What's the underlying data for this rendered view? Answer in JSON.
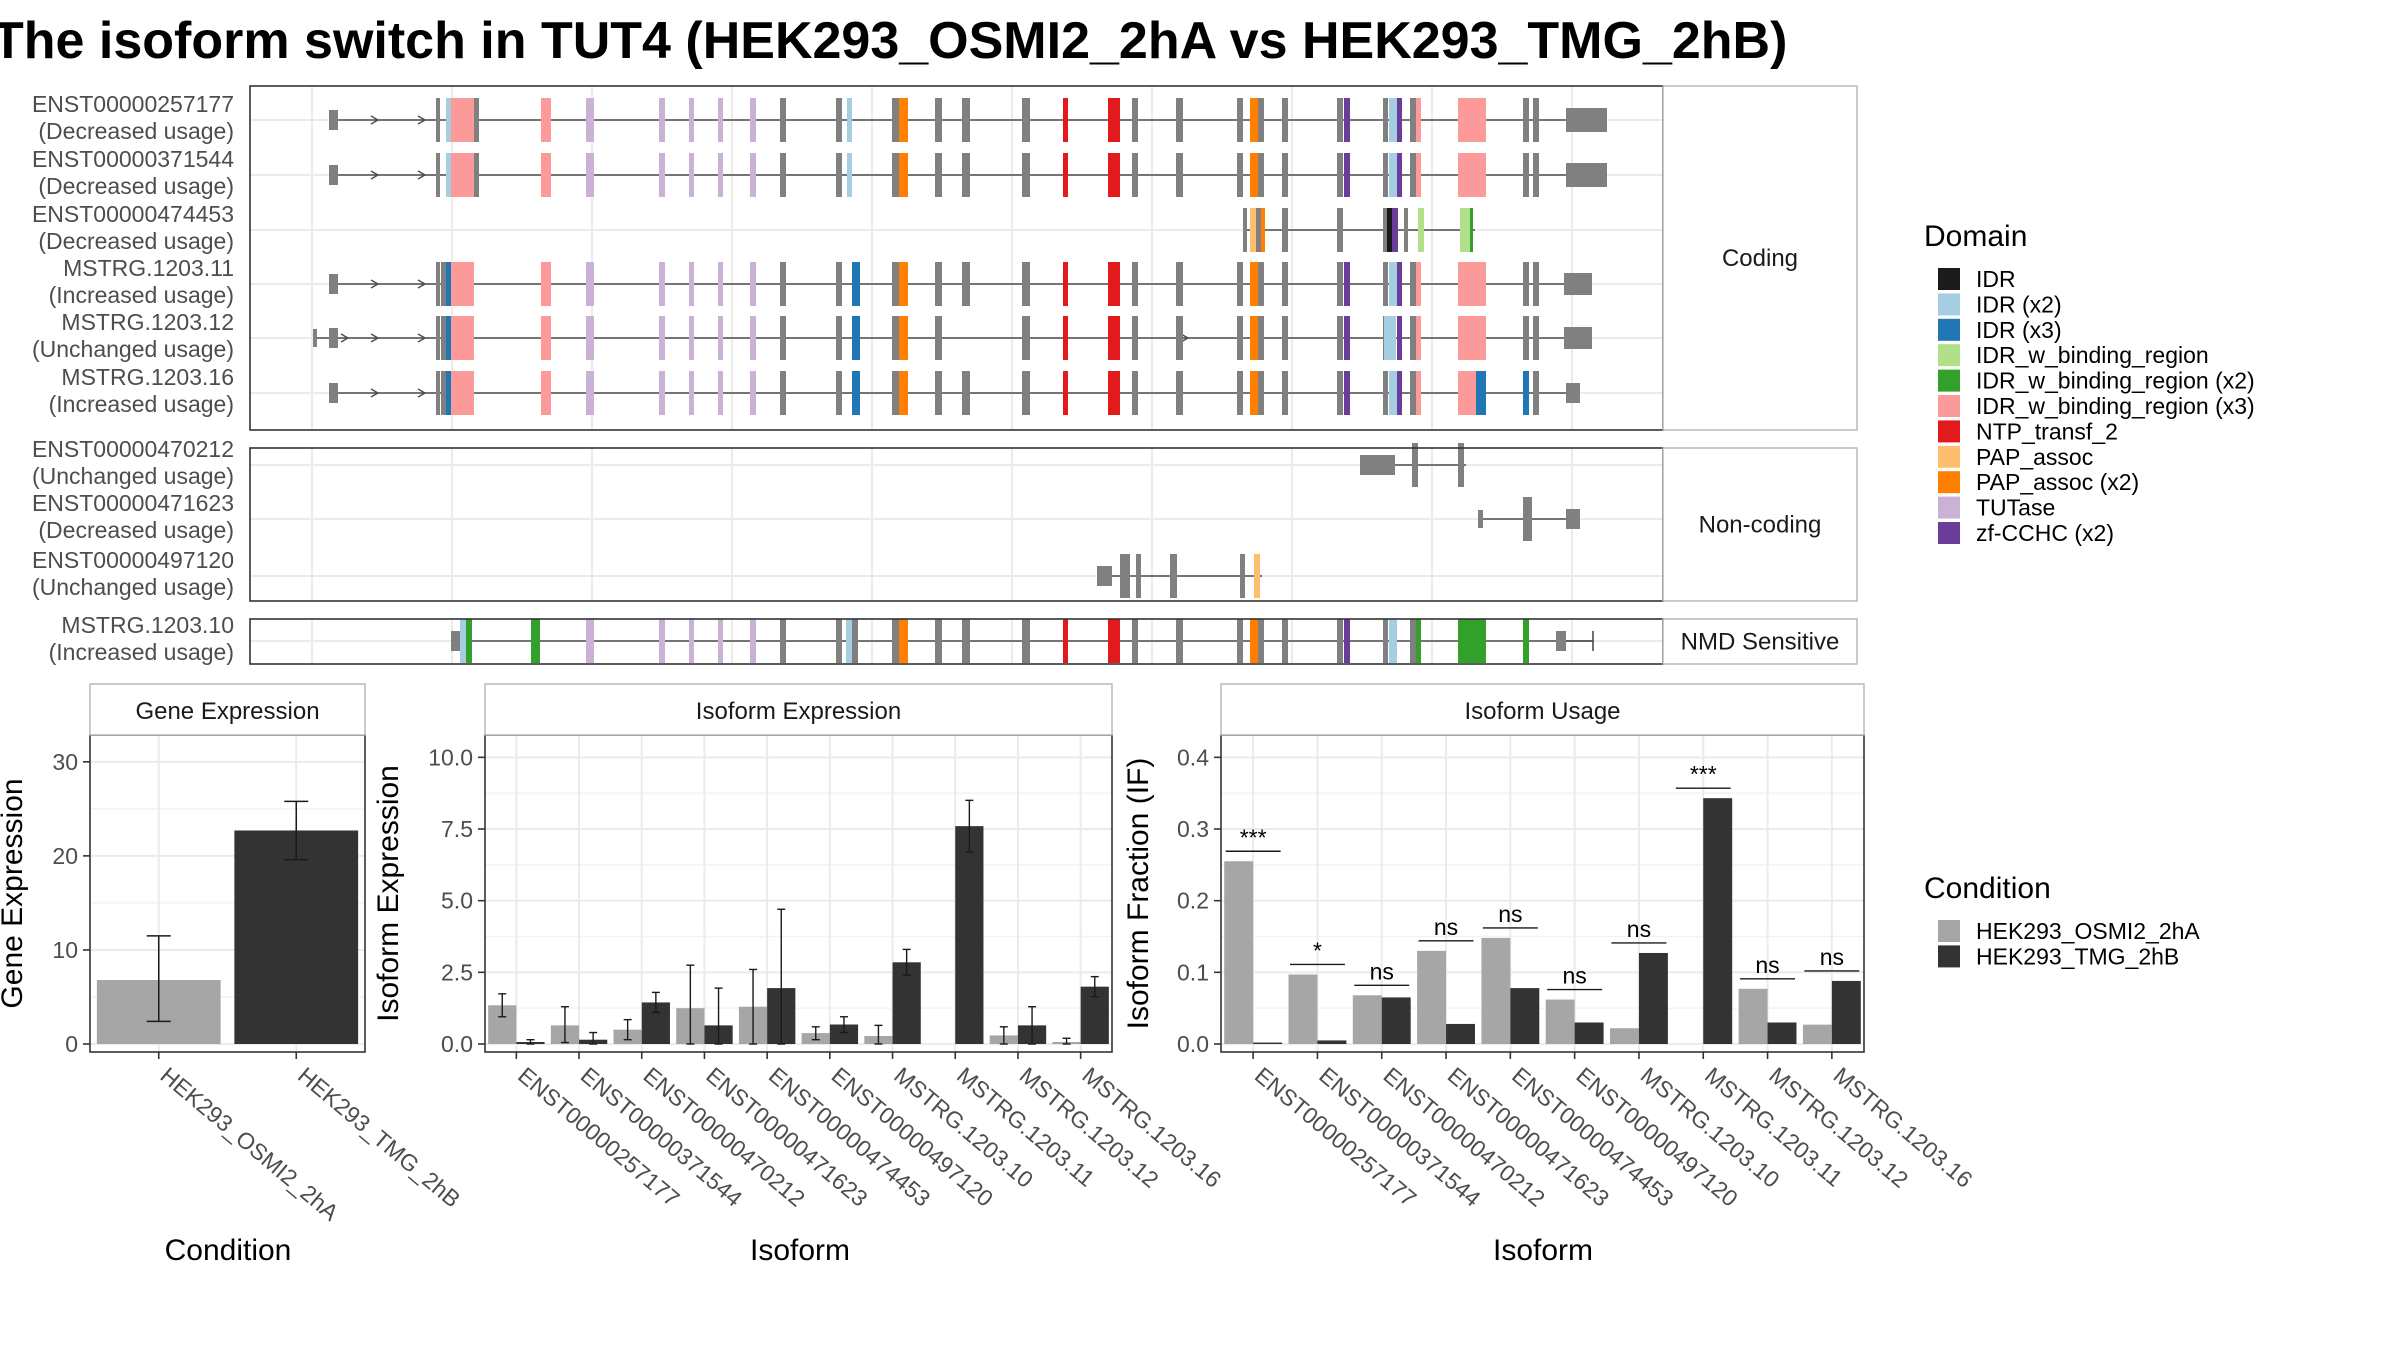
{
  "title": "The isoform switch in TUT4 (HEK293_OSMI2_2hA vs HEK293_TMG_2hB)",
  "colors": {
    "cond1": "#a6a6a6",
    "cond2": "#333333",
    "exon_grey": "#808080",
    "domains": {
      "IDR": "#1b1b1b",
      "IDR (x2)": "#a6cee3",
      "IDR (x3)": "#1f78b4",
      "IDR_w_binding_region": "#b2df8a",
      "IDR_w_binding_region (x2)": "#33a02c",
      "IDR_w_binding_region (x3)": "#fb9a99",
      "NTP_transf_2": "#e31a1c",
      "PAP_assoc": "#fdbf6f",
      "PAP_assoc (x2)": "#ff7f00",
      "TUTase": "#cab2d6",
      "zf-CCHC (x2)": "#6a3d9a"
    }
  },
  "transcript_panels": [
    {
      "strip": "Coding",
      "transcripts": [
        {
          "id": "ENST00000257177",
          "usage": "(Decreased usage)"
        },
        {
          "id": "ENST00000371544",
          "usage": "(Decreased usage)"
        },
        {
          "id": "ENST00000474453",
          "usage": "(Decreased usage)"
        },
        {
          "id": "MSTRG.1203.11",
          "usage": "(Increased usage)"
        },
        {
          "id": "MSTRG.1203.12",
          "usage": "(Unchanged usage)"
        },
        {
          "id": "MSTRG.1203.16",
          "usage": "(Increased usage)"
        }
      ]
    },
    {
      "strip": "Non-coding",
      "transcripts": [
        {
          "id": "ENST00000470212",
          "usage": "(Unchanged usage)"
        },
        {
          "id": "ENST00000471623",
          "usage": "(Decreased usage)"
        },
        {
          "id": "ENST00000497120",
          "usage": "(Unchanged usage)"
        }
      ]
    },
    {
      "strip": "NMD Sensitive",
      "transcripts": [
        {
          "id": "MSTRG.1203.10",
          "usage": "(Increased usage)"
        }
      ]
    }
  ],
  "domain_legend": {
    "title": "Domain",
    "items": [
      {
        "label": "IDR",
        "color": "#1b1b1b"
      },
      {
        "label": "IDR (x2)",
        "color": "#a6cee3"
      },
      {
        "label": "IDR (x3)",
        "color": "#1f78b4"
      },
      {
        "label": "IDR_w_binding_region",
        "color": "#b2df8a"
      },
      {
        "label": "IDR_w_binding_region (x2)",
        "color": "#33a02c"
      },
      {
        "label": "IDR_w_binding_region (x3)",
        "color": "#fb9a99"
      },
      {
        "label": "NTP_transf_2",
        "color": "#e31a1c"
      },
      {
        "label": "PAP_assoc",
        "color": "#fdbf6f"
      },
      {
        "label": "PAP_assoc (x2)",
        "color": "#ff7f00"
      },
      {
        "label": "TUTase",
        "color": "#cab2d6"
      },
      {
        "label": "zf-CCHC (x2)",
        "color": "#6a3d9a"
      }
    ]
  },
  "condition_legend": {
    "title": "Condition",
    "items": [
      {
        "label": "HEK293_OSMI2_2hA",
        "color": "#a6a6a6"
      },
      {
        "label": "HEK293_TMG_2hB",
        "color": "#333333"
      }
    ]
  },
  "chart_data": [
    {
      "type": "bar",
      "strip": "Gene Expression",
      "xlabel": "Condition",
      "ylabel": "Gene Expression",
      "ylim": [
        0,
        32
      ],
      "yticks": [
        0,
        10,
        20,
        30
      ],
      "categories": [
        "HEK293_OSMI2_2hA",
        "HEK293_TMG_2hB"
      ],
      "values": [
        6.8,
        22.7
      ],
      "errors": [
        [
          2.4,
          11.5
        ],
        [
          19.6,
          25.8
        ]
      ]
    },
    {
      "type": "bar",
      "strip": "Isoform Expression",
      "xlabel": "Isoform",
      "ylabel": "Isoform Expression",
      "ylim": [
        0,
        10.5
      ],
      "yticks": [
        "0.0",
        "2.5",
        "5.0",
        "7.5",
        "10.0"
      ],
      "categories": [
        "ENST00000257177",
        "ENST00000371544",
        "ENST00000470212",
        "ENST00000471623",
        "ENST00000474453",
        "ENST00000497120",
        "MSTRG.1203.10",
        "MSTRG.1203.11",
        "MSTRG.1203.12",
        "MSTRG.1203.16"
      ],
      "series": [
        {
          "name": "HEK293_OSMI2_2hA",
          "values": [
            1.35,
            0.65,
            0.5,
            1.25,
            1.3,
            0.38,
            0.28,
            0.0,
            0.3,
            0.07
          ],
          "errors": [
            [
              0.95,
              1.75
            ],
            [
              0.05,
              1.3
            ],
            [
              0.15,
              0.85
            ],
            [
              0.0,
              2.75
            ],
            [
              0.0,
              2.6
            ],
            [
              0.15,
              0.6
            ],
            [
              0.0,
              0.65
            ],
            [
              0.0,
              0.0
            ],
            [
              0.0,
              0.6
            ],
            [
              0.0,
              0.2
            ]
          ]
        },
        {
          "name": "HEK293_TMG_2hB",
          "values": [
            0.07,
            0.15,
            1.45,
            0.65,
            1.95,
            0.68,
            2.85,
            7.6,
            0.65,
            2.0
          ],
          "errors": [
            [
              0.0,
              0.15
            ],
            [
              0.0,
              0.4
            ],
            [
              1.1,
              1.8
            ],
            [
              0.0,
              1.95
            ],
            [
              0.0,
              4.7
            ],
            [
              0.4,
              0.95
            ],
            [
              2.4,
              3.3
            ],
            [
              6.7,
              8.5
            ],
            [
              0.0,
              1.3
            ],
            [
              1.65,
              2.35
            ]
          ]
        }
      ]
    },
    {
      "type": "bar",
      "strip": "Isoform Usage",
      "xlabel": "Isoform",
      "ylabel": "Isoform Fraction (IF)",
      "ylim": [
        0,
        0.42
      ],
      "yticks": [
        "0.0",
        "0.1",
        "0.2",
        "0.3",
        "0.4"
      ],
      "categories": [
        "ENST00000257177",
        "ENST00000371544",
        "ENST00000470212",
        "ENST00000471623",
        "ENST00000474453",
        "ENST00000497120",
        "MSTRG.1203.10",
        "MSTRG.1203.11",
        "MSTRG.1203.12",
        "MSTRG.1203.16"
      ],
      "series": [
        {
          "name": "HEK293_OSMI2_2hA",
          "values": [
            0.255,
            0.097,
            0.068,
            0.13,
            0.148,
            0.062,
            0.022,
            0.0,
            0.077,
            0.027
          ]
        },
        {
          "name": "HEK293_TMG_2hB",
          "values": [
            0.002,
            0.005,
            0.065,
            0.028,
            0.078,
            0.03,
            0.127,
            0.343,
            0.03,
            0.088
          ]
        }
      ],
      "significance": [
        "***",
        "*",
        "ns",
        "ns",
        "ns",
        "ns",
        "ns",
        "***",
        "ns",
        "ns"
      ]
    }
  ]
}
